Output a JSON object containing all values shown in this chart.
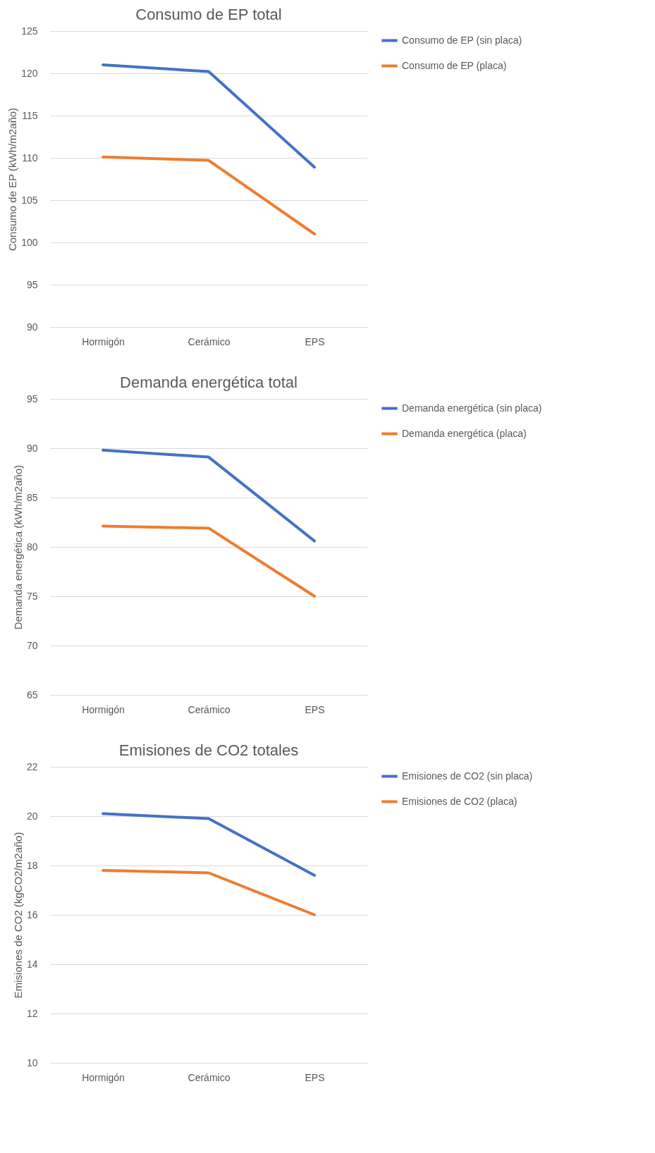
{
  "chart_data": [
    {
      "type": "line",
      "title": "Consumo de EP total",
      "ylabel": "Consumo de EP (kWh/m2año)",
      "categories": [
        "Hormigón",
        "Cerámico",
        "EPS"
      ],
      "ylim": [
        90,
        125
      ],
      "yticks": [
        90,
        95,
        100,
        105,
        110,
        115,
        120,
        125
      ],
      "grid": "y",
      "legend": "right",
      "series": [
        {
          "name": "Consumo de EP (sin placa)",
          "color": "#4472c4",
          "values": [
            121.0,
            120.2,
            108.9
          ]
        },
        {
          "name": "Consumo de EP (placa)",
          "color": "#ed7d31",
          "values": [
            110.1,
            109.7,
            101.0
          ]
        }
      ]
    },
    {
      "type": "line",
      "title": "Demanda energética total",
      "ylabel": "Demanda energética (kWh/m2año)",
      "categories": [
        "Hormigón",
        "Cerámico",
        "EPS"
      ],
      "ylim": [
        65,
        95
      ],
      "yticks": [
        65,
        70,
        75,
        80,
        85,
        90,
        95
      ],
      "grid": "y",
      "legend": "right",
      "series": [
        {
          "name": "Demanda energética (sin placa)",
          "color": "#4472c4",
          "values": [
            89.8,
            89.1,
            80.6
          ]
        },
        {
          "name": "Demanda energética (placa)",
          "color": "#ed7d31",
          "values": [
            82.1,
            81.9,
            75.0
          ]
        }
      ]
    },
    {
      "type": "line",
      "title": "Emisiones de CO2 totales",
      "ylabel": "Emisiones de CO2 (kgCO2/m2año)",
      "categories": [
        "Hormigón",
        "Cerámico",
        "EPS"
      ],
      "ylim": [
        10,
        22
      ],
      "yticks": [
        10,
        12,
        14,
        16,
        18,
        20,
        22
      ],
      "grid": "y",
      "legend": "right",
      "series": [
        {
          "name": "Emisiones de CO2 (sin placa)",
          "color": "#4472c4",
          "values": [
            20.1,
            19.9,
            17.6
          ]
        },
        {
          "name": "Emisiones de CO2 (placa)",
          "color": "#ed7d31",
          "values": [
            17.8,
            17.7,
            16.0
          ]
        }
      ]
    }
  ]
}
